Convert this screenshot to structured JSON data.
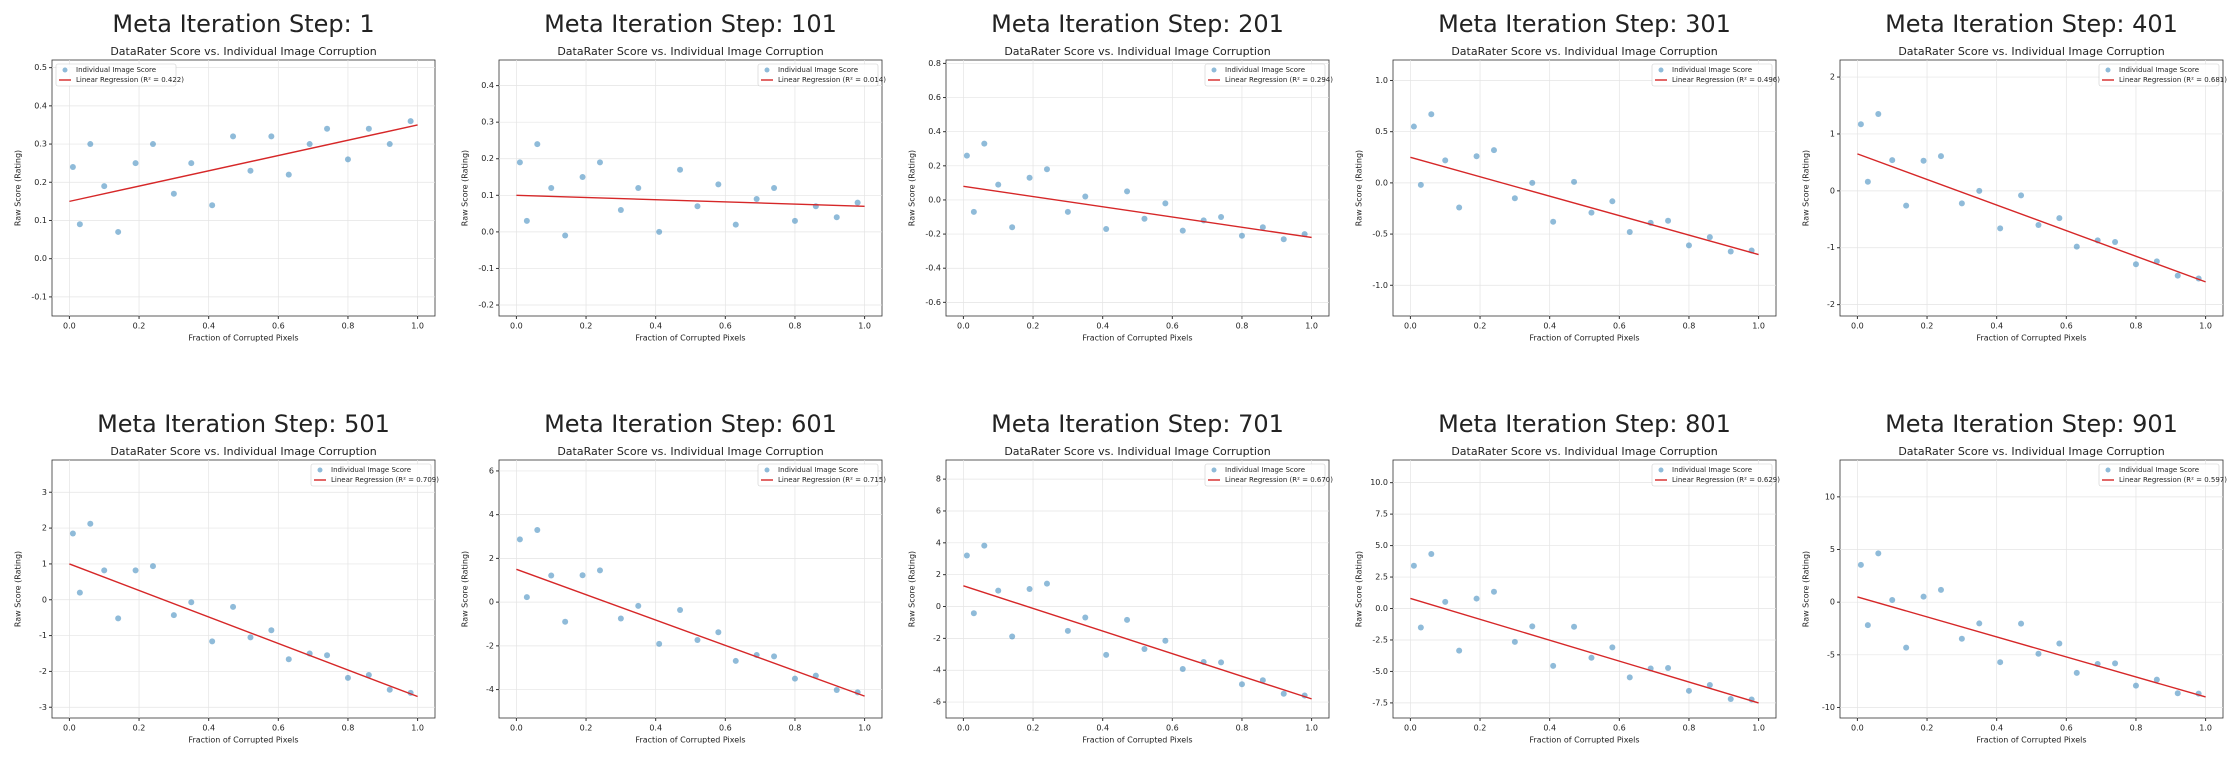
{
  "chart_data": [
    {
      "type": "scatter",
      "title": "Meta Iteration Step: 1",
      "subtitle": "DataRater Score vs. Individual Image Corruption",
      "xlabel": "Fraction of Corrupted Pixels",
      "ylabel": "Raw Score (Rating)",
      "xlim": [
        -0.05,
        1.05
      ],
      "xticks": [
        {
          "value": 0,
          "label": "0.0"
        },
        0.2,
        0.4,
        0.6,
        0.8,
        {
          "value": 1,
          "label": "1.0"
        }
      ],
      "ylim": [
        -0.15,
        0.52
      ],
      "yticks": [
        -0.1,
        {
          "value": 0,
          "label": "0.0"
        },
        0.1,
        0.2,
        0.3,
        0.4,
        0.5
      ],
      "grid": true,
      "legend": "upper left",
      "series": [
        {
          "name": "Individual Image Score",
          "color": "#1f77b4",
          "x": [
            0.01,
            0.03,
            0.06,
            0.1,
            0.14,
            0.19,
            0.24,
            0.3,
            0.35,
            0.41,
            0.47,
            0.52,
            0.58,
            0.63,
            0.69,
            0.74,
            0.8,
            0.86,
            0.92,
            0.98
          ],
          "values": [
            0.24,
            0.09,
            0.3,
            0.19,
            0.07,
            0.25,
            0.3,
            0.17,
            0.25,
            0.14,
            0.32,
            0.23,
            0.32,
            0.22,
            0.3,
            0.34,
            0.26,
            0.34,
            0.3,
            0.36
          ]
        },
        {
          "name": "Linear Regression (R² = 0.422)",
          "color": "#d62728",
          "x": [
            0,
            1
          ],
          "values": [
            0.15,
            0.35
          ]
        }
      ]
    },
    {
      "type": "scatter",
      "title": "Meta Iteration Step: 101",
      "subtitle": "DataRater Score vs. Individual Image Corruption",
      "xlabel": "Fraction of Corrupted Pixels",
      "ylabel": "Raw Score (Rating)",
      "xlim": [
        -0.05,
        1.05
      ],
      "xticks": [
        {
          "value": 0,
          "label": "0.0"
        },
        0.2,
        0.4,
        0.6,
        0.8,
        {
          "value": 1,
          "label": "1.0"
        }
      ],
      "ylim": [
        -0.23,
        0.47
      ],
      "yticks": [
        -0.2,
        -0.1,
        {
          "value": 0,
          "label": "0.0"
        },
        0.1,
        0.2,
        0.3,
        0.4
      ],
      "grid": true,
      "legend": "upper right",
      "series": [
        {
          "name": "Individual Image Score",
          "color": "#1f77b4",
          "x": [
            0.01,
            0.03,
            0.06,
            0.1,
            0.14,
            0.19,
            0.24,
            0.3,
            0.35,
            0.41,
            0.47,
            0.52,
            0.58,
            0.63,
            0.69,
            0.74,
            0.8,
            0.86,
            0.92,
            0.98
          ],
          "values": [
            0.19,
            0.03,
            0.24,
            0.12,
            -0.01,
            0.15,
            0.19,
            0.06,
            0.12,
            0.0,
            0.17,
            0.07,
            0.13,
            0.02,
            0.09,
            0.12,
            0.03,
            0.07,
            0.04,
            0.08
          ]
        },
        {
          "name": "Linear Regression (R² = 0.014)",
          "color": "#d62728",
          "x": [
            0,
            1
          ],
          "values": [
            0.1,
            0.07
          ]
        }
      ]
    },
    {
      "type": "scatter",
      "title": "Meta Iteration Step: 201",
      "subtitle": "DataRater Score vs. Individual Image Corruption",
      "xlabel": "Fraction of Corrupted Pixels",
      "ylabel": "Raw Score (Rating)",
      "xlim": [
        -0.05,
        1.05
      ],
      "xticks": [
        {
          "value": 0,
          "label": "0.0"
        },
        0.2,
        0.4,
        0.6,
        0.8,
        {
          "value": 1,
          "label": "1.0"
        }
      ],
      "ylim": [
        -0.68,
        0.82
      ],
      "yticks": [
        -0.6,
        -0.4,
        -0.2,
        {
          "value": 0,
          "label": "0.0"
        },
        0.2,
        0.4,
        0.6,
        0.8
      ],
      "grid": true,
      "legend": "upper right",
      "series": [
        {
          "name": "Individual Image Score",
          "color": "#1f77b4",
          "x": [
            0.01,
            0.03,
            0.06,
            0.1,
            0.14,
            0.19,
            0.24,
            0.3,
            0.35,
            0.41,
            0.47,
            0.52,
            0.58,
            0.63,
            0.69,
            0.74,
            0.8,
            0.86,
            0.92,
            0.98
          ],
          "values": [
            0.26,
            -0.07,
            0.33,
            0.09,
            -0.16,
            0.13,
            0.18,
            -0.07,
            0.02,
            -0.17,
            0.05,
            -0.11,
            -0.02,
            -0.18,
            -0.12,
            -0.1,
            -0.21,
            -0.16,
            -0.23,
            -0.2
          ]
        },
        {
          "name": "Linear Regression (R² = 0.294)",
          "color": "#d62728",
          "x": [
            0,
            1
          ],
          "values": [
            0.08,
            -0.22
          ]
        }
      ]
    },
    {
      "type": "scatter",
      "title": "Meta Iteration Step: 301",
      "subtitle": "DataRater Score vs. Individual Image Corruption",
      "xlabel": "Fraction of Corrupted Pixels",
      "ylabel": "Raw Score (Rating)",
      "xlim": [
        -0.05,
        1.05
      ],
      "xticks": [
        {
          "value": 0,
          "label": "0.0"
        },
        0.2,
        0.4,
        0.6,
        0.8,
        {
          "value": 1,
          "label": "1.0"
        }
      ],
      "ylim": [
        -1.3,
        1.2
      ],
      "yticks": [
        {
          "value": -1,
          "label": "-1.0"
        },
        -0.5,
        {
          "value": 0,
          "label": "0.0"
        },
        0.5,
        {
          "value": 1,
          "label": "1.0"
        }
      ],
      "grid": true,
      "legend": "upper right",
      "series": [
        {
          "name": "Individual Image Score",
          "color": "#1f77b4",
          "x": [
            0.01,
            0.03,
            0.06,
            0.1,
            0.14,
            0.19,
            0.24,
            0.3,
            0.35,
            0.41,
            0.47,
            0.52,
            0.58,
            0.63,
            0.69,
            0.74,
            0.8,
            0.86,
            0.92,
            0.98
          ],
          "values": [
            0.55,
            -0.02,
            0.67,
            0.22,
            -0.24,
            0.26,
            0.32,
            -0.15,
            0.0,
            -0.38,
            0.01,
            -0.29,
            -0.18,
            -0.48,
            -0.39,
            -0.37,
            -0.61,
            -0.53,
            -0.67,
            -0.66
          ]
        },
        {
          "name": "Linear Regression (R² = 0.496)",
          "color": "#d62728",
          "x": [
            0,
            1
          ],
          "values": [
            0.25,
            -0.7
          ]
        }
      ]
    },
    {
      "type": "scatter",
      "title": "Meta Iteration Step: 401",
      "subtitle": "DataRater Score vs. Individual Image Corruption",
      "xlabel": "Fraction of Corrupted Pixels",
      "ylabel": "Raw Score (Rating)",
      "xlim": [
        -0.05,
        1.05
      ],
      "xticks": [
        {
          "value": 0,
          "label": "0.0"
        },
        0.2,
        0.4,
        0.6,
        0.8,
        {
          "value": 1,
          "label": "1.0"
        }
      ],
      "ylim": [
        -2.2,
        2.3
      ],
      "yticks": [
        -2,
        -1,
        0,
        1,
        2
      ],
      "grid": true,
      "legend": "upper right",
      "series": [
        {
          "name": "Individual Image Score",
          "color": "#1f77b4",
          "x": [
            0.01,
            0.03,
            0.06,
            0.1,
            0.14,
            0.19,
            0.24,
            0.3,
            0.35,
            0.41,
            0.47,
            0.52,
            0.58,
            0.63,
            0.69,
            0.74,
            0.8,
            0.86,
            0.92,
            0.98
          ],
          "values": [
            1.17,
            0.16,
            1.35,
            0.54,
            -0.26,
            0.53,
            0.61,
            -0.22,
            0.0,
            -0.66,
            -0.08,
            -0.6,
            -0.48,
            -0.98,
            -0.87,
            -0.9,
            -1.29,
            -1.24,
            -1.49,
            -1.54
          ]
        },
        {
          "name": "Linear Regression (R² = 0.681)",
          "color": "#d62728",
          "x": [
            0,
            1
          ],
          "values": [
            0.65,
            -1.6
          ]
        }
      ]
    },
    {
      "type": "scatter",
      "title": "Meta Iteration Step: 501",
      "subtitle": "DataRater Score vs. Individual Image Corruption",
      "xlabel": "Fraction of Corrupted Pixels",
      "ylabel": "Raw Score (Rating)",
      "xlim": [
        -0.05,
        1.05
      ],
      "xticks": [
        {
          "value": 0,
          "label": "0.0"
        },
        0.2,
        0.4,
        0.6,
        0.8,
        {
          "value": 1,
          "label": "1.0"
        }
      ],
      "ylim": [
        -3.3,
        3.9
      ],
      "yticks": [
        -3,
        -2,
        -1,
        0,
        1,
        2,
        3
      ],
      "grid": true,
      "legend": "upper right",
      "series": [
        {
          "name": "Individual Image Score",
          "color": "#1f77b4",
          "x": [
            0.01,
            0.03,
            0.06,
            0.1,
            0.14,
            0.19,
            0.24,
            0.3,
            0.35,
            0.41,
            0.47,
            0.52,
            0.58,
            0.63,
            0.69,
            0.74,
            0.8,
            0.86,
            0.92,
            0.98
          ],
          "values": [
            1.85,
            0.2,
            2.12,
            0.82,
            -0.52,
            0.82,
            0.94,
            -0.43,
            -0.07,
            -1.16,
            -0.2,
            -1.05,
            -0.85,
            -1.66,
            -1.5,
            -1.55,
            -2.18,
            -2.1,
            -2.51,
            -2.6
          ]
        },
        {
          "name": "Linear Regression (R² = 0.709)",
          "color": "#d62728",
          "x": [
            0,
            1
          ],
          "values": [
            1.0,
            -2.7
          ]
        }
      ]
    },
    {
      "type": "scatter",
      "title": "Meta Iteration Step: 601",
      "subtitle": "DataRater Score vs. Individual Image Corruption",
      "xlabel": "Fraction of Corrupted Pixels",
      "ylabel": "Raw Score (Rating)",
      "xlim": [
        -0.05,
        1.05
      ],
      "xticks": [
        {
          "value": 0,
          "label": "0.0"
        },
        0.2,
        0.4,
        0.6,
        0.8,
        {
          "value": 1,
          "label": "1.0"
        }
      ],
      "ylim": [
        -5.3,
        6.5
      ],
      "yticks": [
        -4,
        -2,
        0,
        2,
        4,
        6
      ],
      "grid": true,
      "legend": "upper right",
      "series": [
        {
          "name": "Individual Image Score",
          "color": "#1f77b4",
          "x": [
            0.01,
            0.03,
            0.06,
            0.1,
            0.14,
            0.19,
            0.24,
            0.3,
            0.35,
            0.41,
            0.47,
            0.52,
            0.58,
            0.63,
            0.69,
            0.74,
            0.8,
            0.86,
            0.92,
            0.98
          ],
          "values": [
            2.87,
            0.23,
            3.3,
            1.22,
            -0.9,
            1.23,
            1.45,
            -0.75,
            -0.17,
            -1.91,
            -0.36,
            -1.73,
            -1.38,
            -2.69,
            -2.42,
            -2.48,
            -3.5,
            -3.36,
            -4.02,
            -4.13
          ]
        },
        {
          "name": "Linear Regression (R² = 0.715)",
          "color": "#d62728",
          "x": [
            0,
            1
          ],
          "values": [
            1.5,
            -4.3
          ]
        }
      ]
    },
    {
      "type": "scatter",
      "title": "Meta Iteration Step: 701",
      "subtitle": "DataRater Score vs. Individual Image Corruption",
      "xlabel": "Fraction of Corrupted Pixels",
      "ylabel": "Raw Score (Rating)",
      "xlim": [
        -0.05,
        1.05
      ],
      "xticks": [
        {
          "value": 0,
          "label": "0.0"
        },
        0.2,
        0.4,
        0.6,
        0.8,
        {
          "value": 1,
          "label": "1.0"
        }
      ],
      "ylim": [
        -7,
        9.2
      ],
      "yticks": [
        -6,
        -4,
        -2,
        0,
        2,
        4,
        6,
        8
      ],
      "grid": true,
      "legend": "upper right",
      "series": [
        {
          "name": "Individual Image Score",
          "color": "#1f77b4",
          "x": [
            0.01,
            0.03,
            0.06,
            0.1,
            0.14,
            0.19,
            0.24,
            0.3,
            0.35,
            0.41,
            0.47,
            0.52,
            0.58,
            0.63,
            0.69,
            0.74,
            0.8,
            0.86,
            0.92,
            0.98
          ],
          "values": [
            3.2,
            -0.42,
            3.82,
            1.0,
            -1.88,
            1.1,
            1.44,
            -1.53,
            -0.69,
            -3.04,
            -0.84,
            -2.67,
            -2.15,
            -3.92,
            -3.48,
            -3.51,
            -4.88,
            -4.63,
            -5.48,
            -5.59
          ]
        },
        {
          "name": "Linear Regression (R² = 0.670)",
          "color": "#d62728",
          "x": [
            0,
            1
          ],
          "values": [
            1.3,
            -5.8
          ]
        }
      ]
    },
    {
      "type": "scatter",
      "title": "Meta Iteration Step: 801",
      "subtitle": "DataRater Score vs. Individual Image Corruption",
      "xlabel": "Fraction of Corrupted Pixels",
      "ylabel": "Raw Score (Rating)",
      "xlim": [
        -0.05,
        1.05
      ],
      "xticks": [
        {
          "value": 0,
          "label": "0.0"
        },
        0.2,
        0.4,
        0.6,
        0.8,
        {
          "value": 1,
          "label": "1.0"
        }
      ],
      "ylim": [
        -8.7,
        11.8
      ],
      "yticks": [
        -7.5,
        {
          "value": -5,
          "label": "-5.0"
        },
        -2.5,
        {
          "value": 0,
          "label": "0.0"
        },
        2.5,
        {
          "value": 5,
          "label": "5.0"
        },
        7.5,
        {
          "value": 10,
          "label": "10.0"
        }
      ],
      "grid": true,
      "legend": "upper right",
      "series": [
        {
          "name": "Individual Image Score",
          "color": "#1f77b4",
          "x": [
            0.01,
            0.03,
            0.06,
            0.1,
            0.14,
            0.19,
            0.24,
            0.3,
            0.35,
            0.41,
            0.47,
            0.52,
            0.58,
            0.63,
            0.69,
            0.74,
            0.8,
            0.86,
            0.92,
            0.98
          ],
          "values": [
            3.4,
            -1.51,
            4.33,
            0.53,
            -3.35,
            0.79,
            1.33,
            -2.65,
            -1.42,
            -4.56,
            -1.45,
            -3.91,
            -3.09,
            -5.47,
            -4.77,
            -4.73,
            -6.54,
            -6.08,
            -7.19,
            -7.23
          ]
        },
        {
          "name": "Linear Regression (R² = 0.629)",
          "color": "#d62728",
          "x": [
            0,
            1
          ],
          "values": [
            0.8,
            -7.5
          ]
        }
      ]
    },
    {
      "type": "scatter",
      "title": "Meta Iteration Step: 901",
      "subtitle": "DataRater Score vs. Individual Image Corruption",
      "xlabel": "Fraction of Corrupted Pixels",
      "ylabel": "Raw Score (Rating)",
      "xlim": [
        -0.05,
        1.05
      ],
      "xticks": [
        {
          "value": 0,
          "label": "0.0"
        },
        0.2,
        0.4,
        0.6,
        0.8,
        {
          "value": 1,
          "label": "1.0"
        }
      ],
      "ylim": [
        -11,
        13.5
      ],
      "yticks": [
        -10,
        -5,
        0,
        5,
        10
      ],
      "grid": true,
      "legend": "upper right",
      "series": [
        {
          "name": "Individual Image Score",
          "color": "#1f77b4",
          "x": [
            0.01,
            0.03,
            0.06,
            0.1,
            0.14,
            0.19,
            0.24,
            0.3,
            0.35,
            0.41,
            0.47,
            0.52,
            0.58,
            0.63,
            0.69,
            0.74,
            0.8,
            0.86,
            0.92,
            0.98
          ],
          "values": [
            3.54,
            -2.18,
            4.63,
            0.2,
            -4.32,
            0.53,
            1.17,
            -3.47,
            -2.02,
            -5.7,
            -2.04,
            -4.9,
            -3.93,
            -6.72,
            -5.87,
            -5.81,
            -7.93,
            -7.36,
            -8.65,
            -8.69
          ]
        },
        {
          "name": "Linear Regression (R² = 0.597)",
          "color": "#d62728",
          "x": [
            0,
            1
          ],
          "values": [
            0.5,
            -9.0
          ]
        }
      ]
    }
  ]
}
